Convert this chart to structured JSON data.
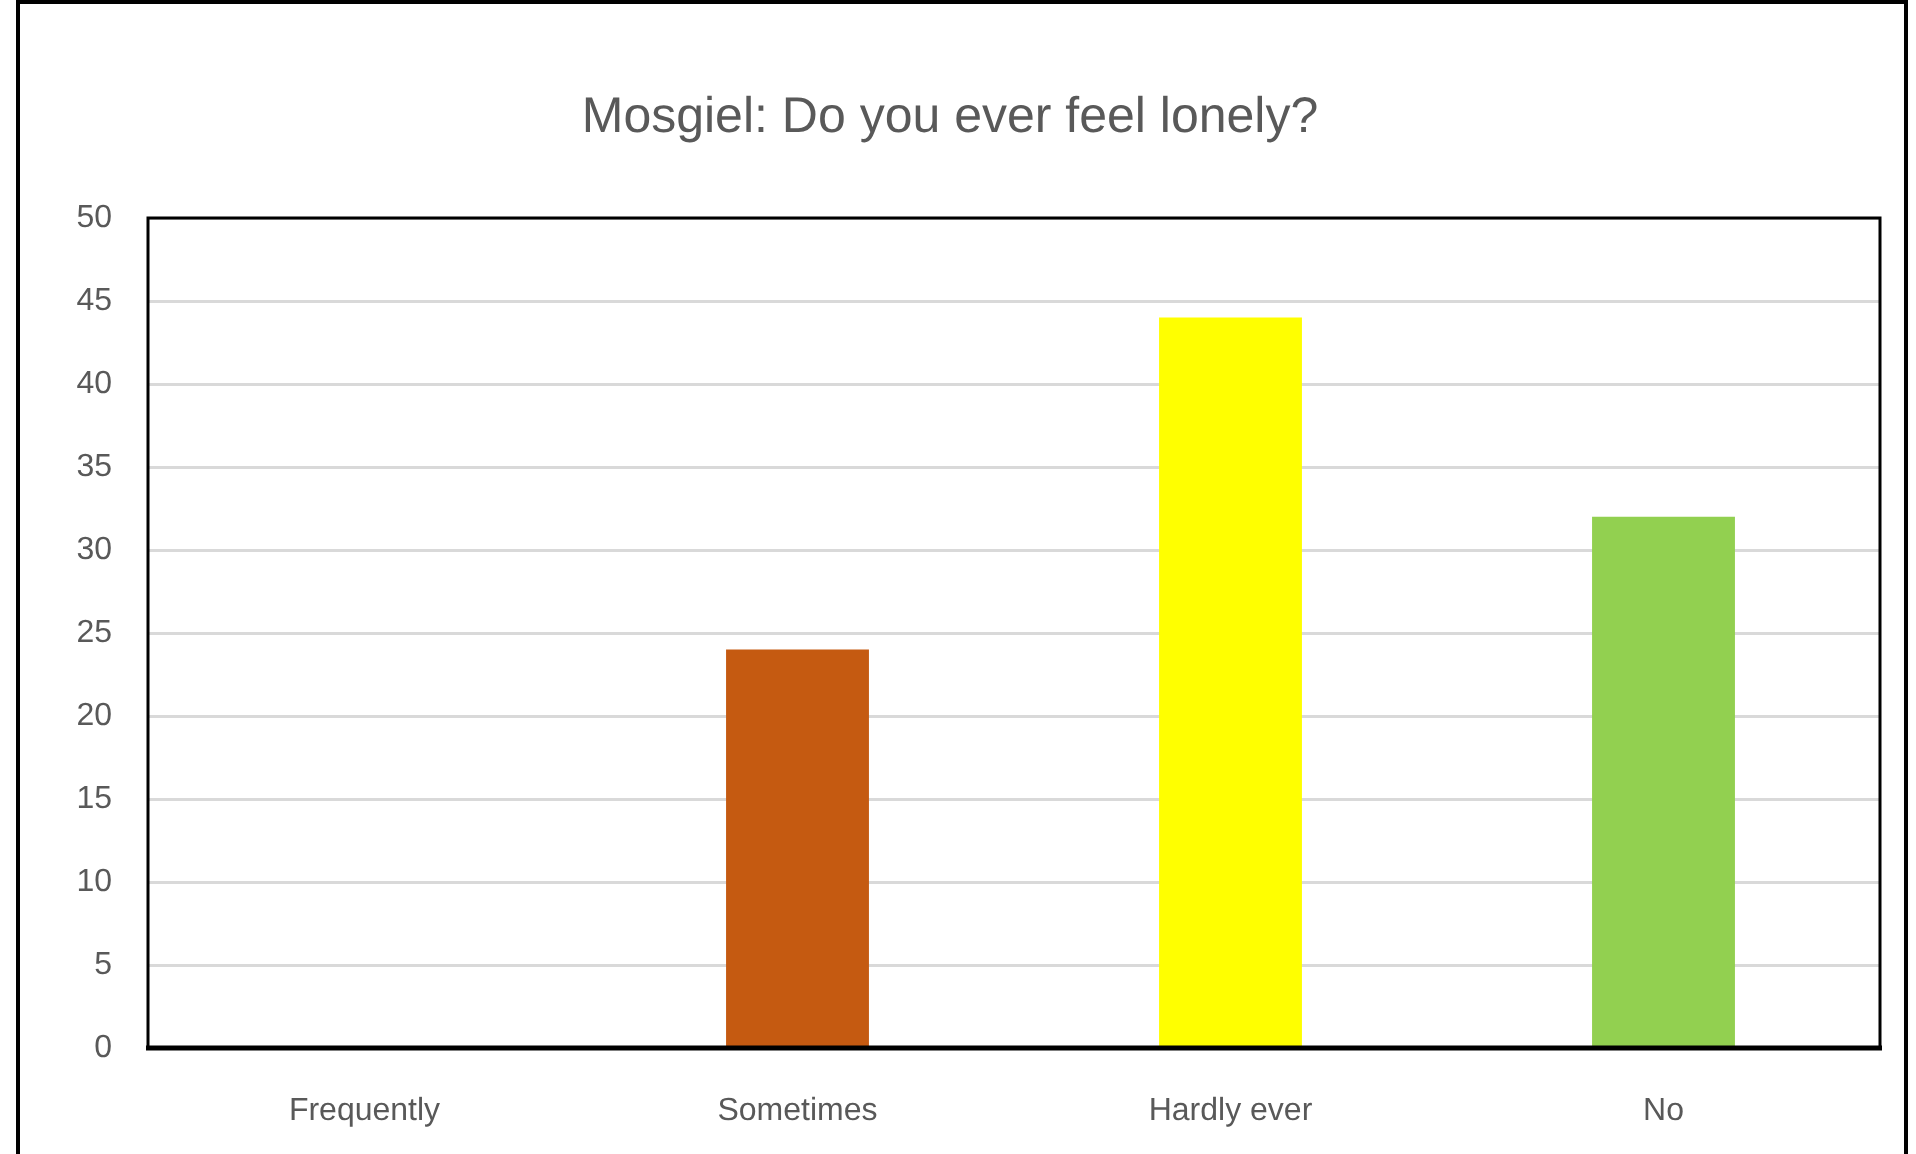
{
  "chart_data": {
    "type": "bar",
    "title": "Mosgiel: Do you ever feel lonely?",
    "categories": [
      "Frequently",
      "Sometimes",
      "Hardly ever",
      "No"
    ],
    "values": [
      0,
      24,
      44,
      32
    ],
    "colors": [
      "#c00000",
      "#c55a11",
      "#ffff00",
      "#92d050"
    ],
    "ylim": [
      0,
      50
    ],
    "yticks": [
      0,
      5,
      10,
      15,
      20,
      25,
      30,
      35,
      40,
      45,
      50
    ],
    "grid": "y"
  }
}
